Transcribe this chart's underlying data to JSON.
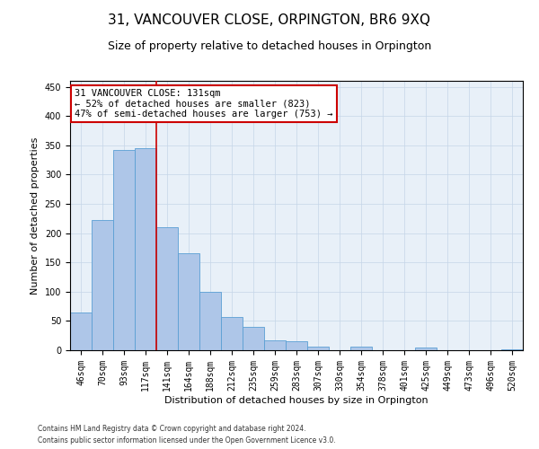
{
  "title": "31, VANCOUVER CLOSE, ORPINGTON, BR6 9XQ",
  "subtitle": "Size of property relative to detached houses in Orpington",
  "xlabel": "Distribution of detached houses by size in Orpington",
  "ylabel": "Number of detached properties",
  "categories": [
    "46sqm",
    "70sqm",
    "93sqm",
    "117sqm",
    "141sqm",
    "164sqm",
    "188sqm",
    "212sqm",
    "235sqm",
    "259sqm",
    "283sqm",
    "307sqm",
    "330sqm",
    "354sqm",
    "378sqm",
    "401sqm",
    "425sqm",
    "449sqm",
    "473sqm",
    "496sqm",
    "520sqm"
  ],
  "values": [
    65,
    222,
    342,
    345,
    210,
    165,
    99,
    57,
    40,
    17,
    16,
    6,
    0,
    6,
    0,
    0,
    4,
    0,
    0,
    0,
    2
  ],
  "bar_color": "#aec6e8",
  "bar_edge_color": "#5a9fd4",
  "vline_x_index": 3.5,
  "vline_color": "#cc0000",
  "annotation_text": "31 VANCOUVER CLOSE: 131sqm\n← 52% of detached houses are smaller (823)\n47% of semi-detached houses are larger (753) →",
  "annotation_box_color": "#ffffff",
  "annotation_box_edge_color": "#cc0000",
  "ylim": [
    0,
    460
  ],
  "yticks": [
    0,
    50,
    100,
    150,
    200,
    250,
    300,
    350,
    400,
    450
  ],
  "bg_color": "#e8f0f8",
  "footer_line1": "Contains HM Land Registry data © Crown copyright and database right 2024.",
  "footer_line2": "Contains public sector information licensed under the Open Government Licence v3.0.",
  "title_fontsize": 11,
  "subtitle_fontsize": 9,
  "annotation_fontsize": 7.5,
  "ylabel_fontsize": 8,
  "xlabel_fontsize": 8,
  "tick_fontsize": 7,
  "footer_fontsize": 5.5
}
